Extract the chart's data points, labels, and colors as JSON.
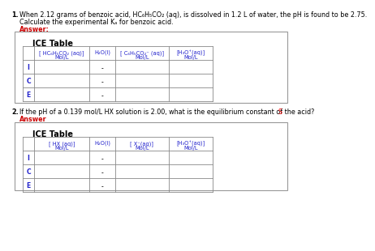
{
  "bg_color": "#ffffff",
  "text_color": "#000000",
  "answer_color": "#cc0000",
  "header_color": "#2222cc",
  "table_border_color": "#888888",
  "box_border_color": "#999999",
  "row_labels": [
    "I",
    "C",
    "E"
  ],
  "dash": "-",
  "q1_line1": "When 2.12 grams of benzoic acid, HC₆H₅CO₂ (aq), is dissolved in 1.2 L of water, the pH is found to be 2.75.",
  "q1_line2": "Calculate the experimental Kₐ for benzoic acid.",
  "q1_answer": "Answer:",
  "q1_headers": [
    "[ HC₆H₅CO₂ (aq)]",
    "H₂O(l)",
    "[ C₆H₅CO₂⁻ (aq)]",
    "[H₃O⁺(aq)]"
  ],
  "q1_subs": [
    "Mol/L",
    "",
    "Mol/L",
    "Mol/L"
  ],
  "q2_line1": "If the pH of a 0.139 mol/L HX solution is 2.00, what is the equilibrium constant of the acid?",
  "q2_line1_s": "S",
  "q2_answer": "Answer",
  "q2_headers": [
    "[ HX (aq)]",
    "H₂O(l)",
    "[ X⁻(aq)]",
    "[H₃O⁺(aq)]"
  ],
  "q2_subs": [
    "Mol/L",
    "",
    "Mol/L",
    "Mol/L"
  ]
}
